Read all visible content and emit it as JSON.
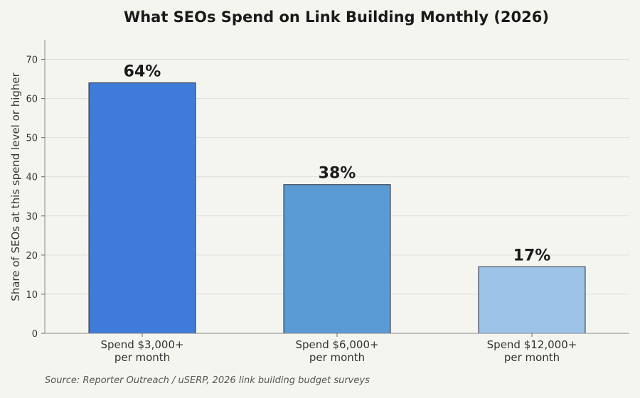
{
  "chart_data": {
    "type": "bar",
    "title": "What SEOs Spend on Link Building Monthly (2026)",
    "ylabel": "Share of SEOs at this spend level or higher",
    "xlabel": "",
    "categories": [
      [
        "Spend $3,000+",
        "per month"
      ],
      [
        "Spend $6,000+",
        "per month"
      ],
      [
        "Spend $12,000+",
        "per month"
      ]
    ],
    "values": [
      64,
      38,
      17
    ],
    "data_labels": [
      "64%",
      "38%",
      "17%"
    ],
    "ylim": [
      0,
      75
    ],
    "yticks": [
      0,
      10,
      20,
      30,
      40,
      50,
      60,
      70
    ],
    "grid": true,
    "bar_colors": [
      "#3f7bd8",
      "#5b9bd5",
      "#9dc3e8"
    ],
    "source": "Source: Reporter Outreach / uSERP, 2026 link building budget surveys"
  }
}
